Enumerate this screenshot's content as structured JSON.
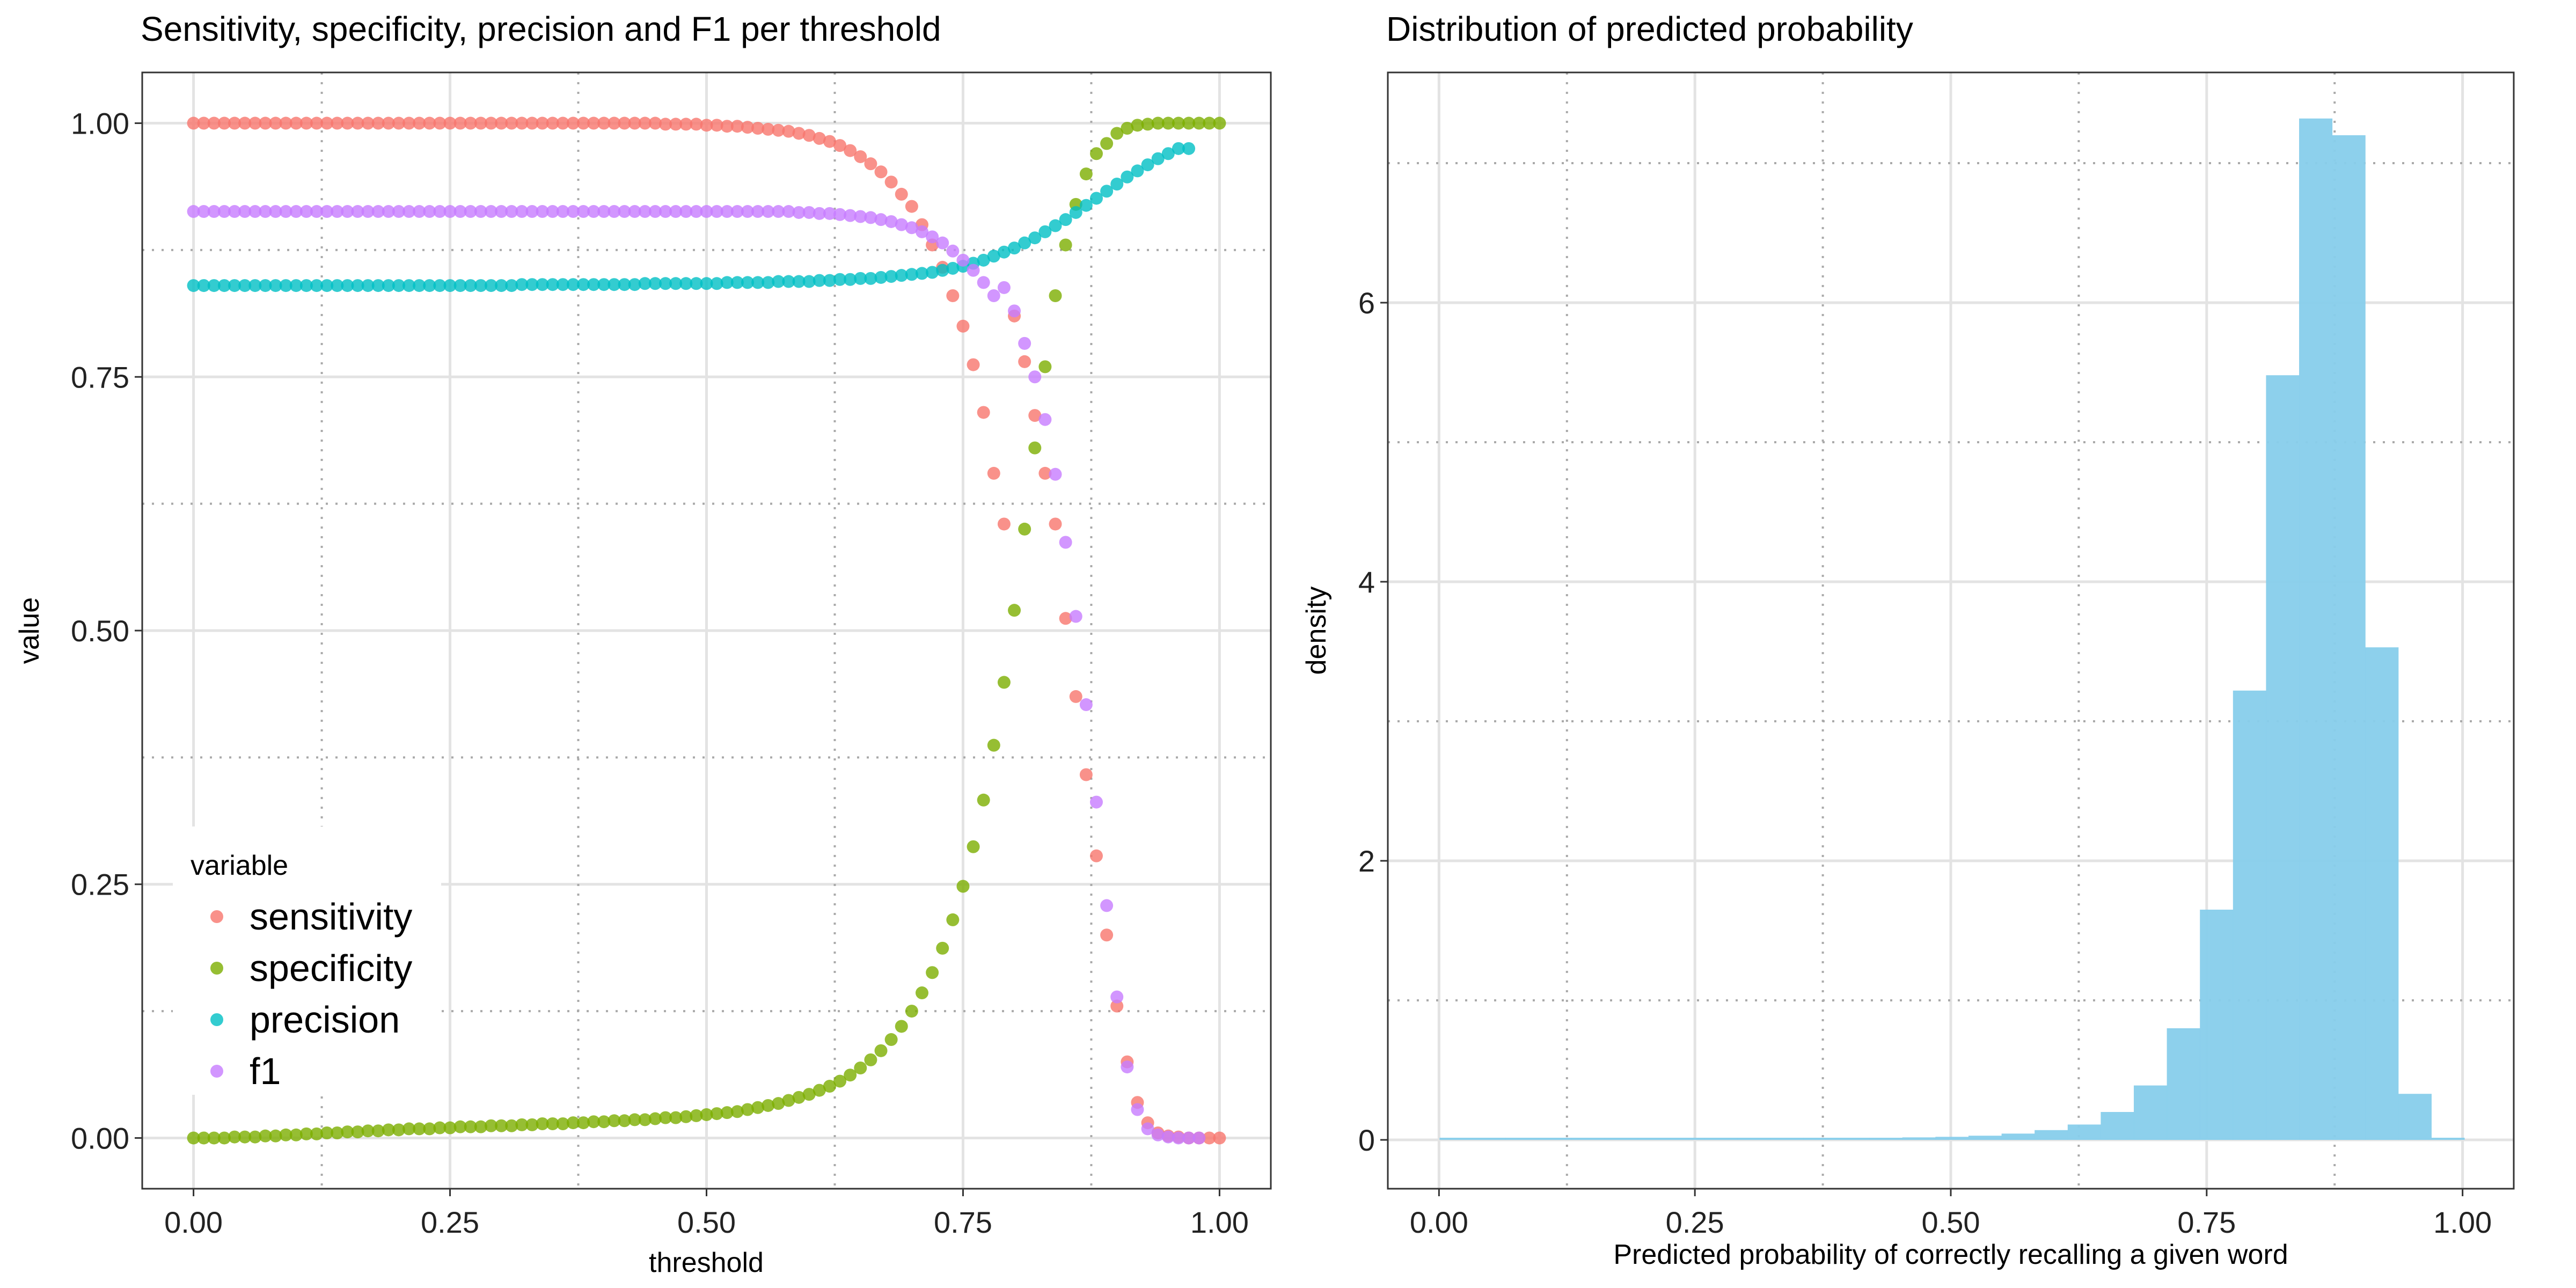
{
  "chart_data": [
    {
      "type": "scatter",
      "title": "Sensitivity, specificity, precision and F1 per threshold",
      "xlabel": "threshold",
      "ylabel": "value",
      "xlim": [
        -0.05,
        1.05
      ],
      "ylim": [
        -0.05,
        1.05
      ],
      "xticks": [
        0,
        0.25,
        0.5,
        0.75,
        1
      ],
      "xtick_labels": [
        "0.00",
        "0.25",
        "0.50",
        "0.75",
        "1.00"
      ],
      "yticks": [
        0,
        0.25,
        0.5,
        0.75,
        1
      ],
      "ytick_labels": [
        "0.00",
        "0.25",
        "0.50",
        "0.75",
        "1.00"
      ],
      "dotted_x": [
        0.125,
        0.375,
        0.625,
        0.875
      ],
      "dotted_y": [
        0.125,
        0.375,
        0.625,
        0.875
      ],
      "grid": true,
      "legend": {
        "title": "variable",
        "position": "bottom-left"
      },
      "series": [
        {
          "name": "sensitivity",
          "color": "#F8766D",
          "x": [
            0,
            0.01,
            0.02,
            0.03,
            0.04,
            0.05,
            0.06,
            0.07,
            0.08,
            0.09,
            0.1,
            0.11,
            0.12,
            0.13,
            0.14,
            0.15,
            0.16,
            0.17,
            0.18,
            0.19,
            0.2,
            0.21,
            0.22,
            0.23,
            0.24,
            0.25,
            0.26,
            0.27,
            0.28,
            0.29,
            0.3,
            0.31,
            0.32,
            0.33,
            0.34,
            0.35,
            0.36,
            0.37,
            0.38,
            0.39,
            0.4,
            0.41,
            0.42,
            0.43,
            0.44,
            0.45,
            0.46,
            0.47,
            0.48,
            0.49,
            0.5,
            0.51,
            0.52,
            0.53,
            0.54,
            0.55,
            0.56,
            0.57,
            0.58,
            0.59,
            0.6,
            0.61,
            0.62,
            0.63,
            0.64,
            0.65,
            0.66,
            0.67,
            0.68,
            0.69,
            0.7,
            0.71,
            0.72,
            0.73,
            0.74,
            0.75,
            0.76,
            0.77,
            0.78,
            0.79,
            0.8,
            0.81,
            0.82,
            0.83,
            0.84,
            0.85,
            0.86,
            0.87,
            0.88,
            0.89,
            0.9,
            0.91,
            0.92,
            0.93,
            0.94,
            0.95,
            0.96,
            0.97,
            0.98,
            0.99,
            1
          ],
          "y": [
            1,
            1,
            1,
            1,
            1,
            1,
            1,
            1,
            1,
            1,
            1,
            1,
            1,
            1,
            1,
            1,
            1,
            1,
            1,
            1,
            1,
            1,
            1,
            1,
            1,
            1,
            1,
            1,
            1,
            1,
            1,
            1,
            1,
            1,
            1,
            1,
            1,
            1,
            1,
            1,
            1,
            1,
            1,
            1,
            1,
            1,
            0.999,
            0.999,
            0.999,
            0.999,
            0.998,
            0.998,
            0.997,
            0.997,
            0.996,
            0.995,
            0.994,
            0.993,
            0.992,
            0.99,
            0.988,
            0.985,
            0.982,
            0.978,
            0.973,
            0.967,
            0.96,
            0.952,
            0.942,
            0.93,
            0.918,
            0.9,
            0.88,
            0.858,
            0.83,
            0.8,
            0.762,
            0.715,
            0.655,
            0.605,
            0.81,
            0.765,
            0.712,
            0.655,
            0.605,
            0.512,
            0.435,
            0.358,
            0.278,
            0.2,
            0.13,
            0.075,
            0.035,
            0.015,
            0.005,
            0.002,
            0.001,
            0,
            0,
            0,
            0
          ]
        },
        {
          "name": "specificity",
          "color": "#7CAE00",
          "x": [
            0,
            0.01,
            0.02,
            0.03,
            0.04,
            0.05,
            0.06,
            0.07,
            0.08,
            0.09,
            0.1,
            0.11,
            0.12,
            0.13,
            0.14,
            0.15,
            0.16,
            0.17,
            0.18,
            0.19,
            0.2,
            0.21,
            0.22,
            0.23,
            0.24,
            0.25,
            0.26,
            0.27,
            0.28,
            0.29,
            0.3,
            0.31,
            0.32,
            0.33,
            0.34,
            0.35,
            0.36,
            0.37,
            0.38,
            0.39,
            0.4,
            0.41,
            0.42,
            0.43,
            0.44,
            0.45,
            0.46,
            0.47,
            0.48,
            0.49,
            0.5,
            0.51,
            0.52,
            0.53,
            0.54,
            0.55,
            0.56,
            0.57,
            0.58,
            0.59,
            0.6,
            0.61,
            0.62,
            0.63,
            0.64,
            0.65,
            0.66,
            0.67,
            0.68,
            0.69,
            0.7,
            0.71,
            0.72,
            0.73,
            0.74,
            0.75,
            0.76,
            0.77,
            0.78,
            0.79,
            0.8,
            0.81,
            0.82,
            0.83,
            0.84,
            0.85,
            0.86,
            0.87,
            0.88,
            0.89,
            0.9,
            0.91,
            0.92,
            0.93,
            0.94,
            0.95,
            0.96,
            0.97,
            0.98,
            0.99,
            1
          ],
          "y": [
            0,
            0,
            0,
            0,
            0.001,
            0.001,
            0.001,
            0.002,
            0.002,
            0.003,
            0.003,
            0.004,
            0.004,
            0.005,
            0.005,
            0.006,
            0.006,
            0.007,
            0.007,
            0.008,
            0.008,
            0.009,
            0.009,
            0.009,
            0.01,
            0.01,
            0.011,
            0.011,
            0.011,
            0.012,
            0.012,
            0.012,
            0.013,
            0.013,
            0.014,
            0.014,
            0.014,
            0.015,
            0.015,
            0.016,
            0.016,
            0.017,
            0.017,
            0.018,
            0.018,
            0.019,
            0.02,
            0.02,
            0.021,
            0.022,
            0.023,
            0.024,
            0.025,
            0.026,
            0.028,
            0.03,
            0.032,
            0.034,
            0.037,
            0.04,
            0.043,
            0.047,
            0.051,
            0.056,
            0.062,
            0.069,
            0.077,
            0.086,
            0.097,
            0.11,
            0.125,
            0.143,
            0.163,
            0.187,
            0.215,
            0.248,
            0.287,
            0.333,
            0.387,
            0.449,
            0.52,
            0.6,
            0.68,
            0.76,
            0.83,
            0.88,
            0.92,
            0.95,
            0.97,
            0.98,
            0.99,
            0.995,
            0.998,
            0.999,
            1,
            1,
            1,
            1,
            1,
            1,
            1
          ]
        },
        {
          "name": "precision",
          "color": "#00BFC4",
          "x": [
            0,
            0.01,
            0.02,
            0.03,
            0.04,
            0.05,
            0.06,
            0.07,
            0.08,
            0.09,
            0.1,
            0.11,
            0.12,
            0.13,
            0.14,
            0.15,
            0.16,
            0.17,
            0.18,
            0.19,
            0.2,
            0.21,
            0.22,
            0.23,
            0.24,
            0.25,
            0.26,
            0.27,
            0.28,
            0.29,
            0.3,
            0.31,
            0.32,
            0.33,
            0.34,
            0.35,
            0.36,
            0.37,
            0.38,
            0.39,
            0.4,
            0.41,
            0.42,
            0.43,
            0.44,
            0.45,
            0.46,
            0.47,
            0.48,
            0.49,
            0.5,
            0.51,
            0.52,
            0.53,
            0.54,
            0.55,
            0.56,
            0.57,
            0.58,
            0.59,
            0.6,
            0.61,
            0.62,
            0.63,
            0.64,
            0.65,
            0.66,
            0.67,
            0.68,
            0.69,
            0.7,
            0.71,
            0.72,
            0.73,
            0.74,
            0.75,
            0.76,
            0.77,
            0.78,
            0.79,
            0.8,
            0.81,
            0.82,
            0.83,
            0.84,
            0.85,
            0.86,
            0.87,
            0.88,
            0.89,
            0.9,
            0.91,
            0.92,
            0.93,
            0.94,
            0.95,
            0.96,
            0.97
          ],
          "y": [
            0.84,
            0.84,
            0.84,
            0.84,
            0.84,
            0.84,
            0.84,
            0.84,
            0.84,
            0.84,
            0.84,
            0.84,
            0.84,
            0.84,
            0.84,
            0.84,
            0.84,
            0.84,
            0.84,
            0.84,
            0.84,
            0.84,
            0.84,
            0.84,
            0.84,
            0.84,
            0.84,
            0.84,
            0.84,
            0.84,
            0.84,
            0.84,
            0.841,
            0.841,
            0.841,
            0.841,
            0.841,
            0.841,
            0.841,
            0.841,
            0.841,
            0.841,
            0.841,
            0.841,
            0.842,
            0.842,
            0.842,
            0.842,
            0.842,
            0.842,
            0.842,
            0.842,
            0.843,
            0.843,
            0.843,
            0.843,
            0.843,
            0.844,
            0.844,
            0.844,
            0.844,
            0.845,
            0.845,
            0.846,
            0.846,
            0.847,
            0.847,
            0.848,
            0.849,
            0.85,
            0.851,
            0.852,
            0.853,
            0.855,
            0.857,
            0.859,
            0.862,
            0.865,
            0.869,
            0.873,
            0.877,
            0.882,
            0.887,
            0.893,
            0.899,
            0.905,
            0.912,
            0.919,
            0.926,
            0.933,
            0.94,
            0.947,
            0.953,
            0.959,
            0.965,
            0.97,
            0.975,
            0.975
          ]
        },
        {
          "name": "f1",
          "color": "#C77CFF",
          "x": [
            0,
            0.01,
            0.02,
            0.03,
            0.04,
            0.05,
            0.06,
            0.07,
            0.08,
            0.09,
            0.1,
            0.11,
            0.12,
            0.13,
            0.14,
            0.15,
            0.16,
            0.17,
            0.18,
            0.19,
            0.2,
            0.21,
            0.22,
            0.23,
            0.24,
            0.25,
            0.26,
            0.27,
            0.28,
            0.29,
            0.3,
            0.31,
            0.32,
            0.33,
            0.34,
            0.35,
            0.36,
            0.37,
            0.38,
            0.39,
            0.4,
            0.41,
            0.42,
            0.43,
            0.44,
            0.45,
            0.46,
            0.47,
            0.48,
            0.49,
            0.5,
            0.51,
            0.52,
            0.53,
            0.54,
            0.55,
            0.56,
            0.57,
            0.58,
            0.59,
            0.6,
            0.61,
            0.62,
            0.63,
            0.64,
            0.65,
            0.66,
            0.67,
            0.68,
            0.69,
            0.7,
            0.71,
            0.72,
            0.73,
            0.74,
            0.75,
            0.76,
            0.77,
            0.78,
            0.79,
            0.8,
            0.81,
            0.82,
            0.83,
            0.84,
            0.85,
            0.86,
            0.87,
            0.88,
            0.89,
            0.9,
            0.91,
            0.92,
            0.93,
            0.94,
            0.95,
            0.96,
            0.97,
            0.98
          ],
          "y": [
            0.913,
            0.913,
            0.913,
            0.913,
            0.913,
            0.913,
            0.913,
            0.913,
            0.913,
            0.913,
            0.913,
            0.913,
            0.913,
            0.913,
            0.913,
            0.913,
            0.913,
            0.913,
            0.913,
            0.913,
            0.913,
            0.913,
            0.913,
            0.913,
            0.913,
            0.913,
            0.913,
            0.913,
            0.913,
            0.913,
            0.913,
            0.913,
            0.913,
            0.913,
            0.913,
            0.913,
            0.913,
            0.913,
            0.913,
            0.913,
            0.913,
            0.913,
            0.913,
            0.913,
            0.913,
            0.913,
            0.913,
            0.913,
            0.913,
            0.913,
            0.913,
            0.913,
            0.913,
            0.913,
            0.913,
            0.913,
            0.913,
            0.913,
            0.913,
            0.912,
            0.912,
            0.911,
            0.911,
            0.91,
            0.909,
            0.908,
            0.907,
            0.905,
            0.903,
            0.9,
            0.897,
            0.893,
            0.888,
            0.882,
            0.874,
            0.865,
            0.855,
            0.843,
            0.83,
            0.838,
            0.815,
            0.783,
            0.75,
            0.708,
            0.654,
            0.587,
            0.514,
            0.427,
            0.331,
            0.229,
            0.139,
            0.07,
            0.028,
            0.009,
            0.003,
            0.001,
            0,
            0,
            0
          ]
        }
      ]
    },
    {
      "type": "bar",
      "title": "Distribution of predicted probability",
      "xlabel": "Predicted probability of correctly recalling a given word",
      "ylabel": "density",
      "xlim": [
        -0.05,
        1.05
      ],
      "ylim": [
        -0.35,
        7.65
      ],
      "xticks": [
        0,
        0.25,
        0.5,
        0.75,
        1
      ],
      "xtick_labels": [
        "0.00",
        "0.25",
        "0.50",
        "0.75",
        "1.00"
      ],
      "yticks": [
        0,
        2,
        4,
        6
      ],
      "ytick_labels": [
        "0",
        "2",
        "4",
        "6"
      ],
      "dotted_x": [
        0.125,
        0.375,
        0.625,
        0.875
      ],
      "dotted_y": [
        1,
        3,
        5,
        7
      ],
      "grid": true,
      "bin_width": 0.0323,
      "bar_color": "#87CEEB",
      "bins_left": [
        0.0005,
        0.0328,
        0.0651,
        0.0974,
        0.1297,
        0.162,
        0.1943,
        0.2266,
        0.2589,
        0.2912,
        0.3235,
        0.3558,
        0.3881,
        0.4204,
        0.4527,
        0.485,
        0.5173,
        0.5496,
        0.5819,
        0.6142,
        0.6465,
        0.6788,
        0.7111,
        0.7434,
        0.7757,
        0.808,
        0.8403,
        0.8726,
        0.9049,
        0.9372,
        0.9695
      ],
      "values": [
        0.002,
        0.003,
        0.005,
        0.007,
        0.008,
        0.01,
        0.011,
        0.011,
        0.012,
        0.012,
        0.013,
        0.013,
        0.014,
        0.015,
        0.018,
        0.022,
        0.03,
        0.045,
        0.07,
        0.11,
        0.2,
        0.39,
        0.8,
        1.65,
        3.22,
        5.48,
        7.32,
        7.2,
        3.53,
        0.33,
        0.01
      ]
    }
  ]
}
